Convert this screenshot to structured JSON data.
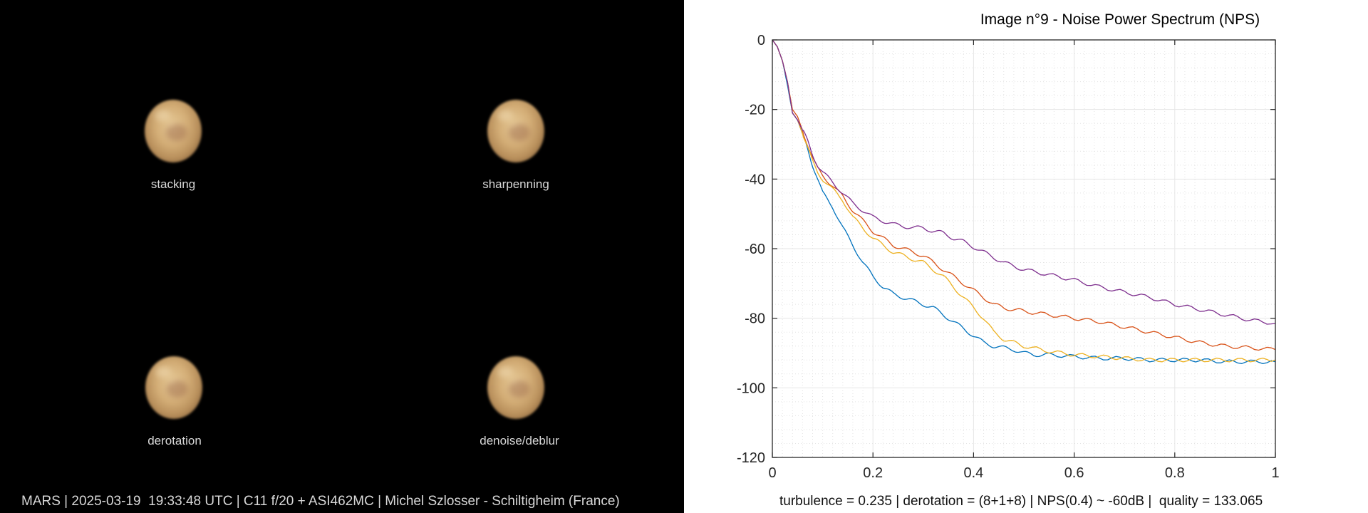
{
  "panels": [
    {
      "label": "stacking"
    },
    {
      "label": "sharpenning"
    },
    {
      "label": "derotation"
    },
    {
      "label": "denoise/deblur"
    }
  ],
  "caption": "MARS | 2025-03-19  19:33:48 UTC | C11 f/20 + ASI462MC | Michel Szlosser - Schiltigheim (France)",
  "footer": "turbulence = 0.235 | derotation = (8+1+8) | NPS(0.4) ~ -60dB |  quality = 133.065",
  "colors": {
    "background_left": "#000000",
    "grid": "#e6e6e6"
  },
  "chart_data": {
    "type": "line",
    "title": "Image n°9 - Noise Power Spectrum (NPS)",
    "xlabel": "",
    "ylabel": "",
    "xlim": [
      0,
      1
    ],
    "ylim": [
      -120,
      0
    ],
    "xticks": [
      0,
      0.2,
      0.4,
      0.6,
      0.8,
      1
    ],
    "xtick_labels": [
      "0",
      "0.2",
      "0.4",
      "0.6",
      "0.8",
      "1"
    ],
    "yticks": [
      0,
      -20,
      -40,
      -60,
      -80,
      -100,
      -120
    ],
    "ytick_labels": [
      "0",
      "-20",
      "-40",
      "-60",
      "-80",
      "-100",
      "-120"
    ],
    "grid": true,
    "minor_grid": true,
    "legend": "none",
    "series": [
      {
        "color": "#0072BD",
        "points": [
          [
            0,
            0
          ],
          [
            0.01,
            -2
          ],
          [
            0.02,
            -6
          ],
          [
            0.03,
            -13
          ],
          [
            0.04,
            -21
          ],
          [
            0.05,
            -23
          ],
          [
            0.06,
            -27
          ],
          [
            0.07,
            -31
          ],
          [
            0.08,
            -36
          ],
          [
            0.09,
            -40
          ],
          [
            0.1,
            -44
          ],
          [
            0.12,
            -48
          ],
          [
            0.14,
            -54
          ],
          [
            0.16,
            -59
          ],
          [
            0.18,
            -64
          ],
          [
            0.2,
            -68
          ],
          [
            0.22,
            -71
          ],
          [
            0.24,
            -73
          ],
          [
            0.26,
            -74
          ],
          [
            0.28,
            -75
          ],
          [
            0.3,
            -76
          ],
          [
            0.32,
            -77
          ],
          [
            0.34,
            -79
          ],
          [
            0.36,
            -81
          ],
          [
            0.38,
            -83
          ],
          [
            0.4,
            -85
          ],
          [
            0.42,
            -87
          ],
          [
            0.44,
            -88
          ],
          [
            0.46,
            -88.5
          ],
          [
            0.48,
            -89
          ],
          [
            0.5,
            -90
          ],
          [
            0.52,
            -90.5
          ],
          [
            0.55,
            -90.5
          ],
          [
            0.6,
            -91
          ],
          [
            0.65,
            -91.5
          ],
          [
            0.7,
            -91.5
          ],
          [
            0.75,
            -92
          ],
          [
            0.8,
            -92
          ],
          [
            0.85,
            -92
          ],
          [
            0.9,
            -92.5
          ],
          [
            0.95,
            -92.5
          ],
          [
            1.0,
            -92.5
          ]
        ]
      },
      {
        "color": "#D95319",
        "points": [
          [
            0,
            0
          ],
          [
            0.01,
            -2
          ],
          [
            0.02,
            -6
          ],
          [
            0.03,
            -12
          ],
          [
            0.04,
            -20
          ],
          [
            0.05,
            -22
          ],
          [
            0.06,
            -26
          ],
          [
            0.07,
            -30
          ],
          [
            0.08,
            -34
          ],
          [
            0.09,
            -37
          ],
          [
            0.1,
            -39
          ],
          [
            0.12,
            -42
          ],
          [
            0.14,
            -45
          ],
          [
            0.16,
            -49
          ],
          [
            0.18,
            -52
          ],
          [
            0.2,
            -55
          ],
          [
            0.22,
            -57
          ],
          [
            0.24,
            -59
          ],
          [
            0.26,
            -60
          ],
          [
            0.28,
            -61
          ],
          [
            0.3,
            -62
          ],
          [
            0.32,
            -64
          ],
          [
            0.34,
            -66
          ],
          [
            0.36,
            -68
          ],
          [
            0.38,
            -70
          ],
          [
            0.4,
            -72
          ],
          [
            0.42,
            -74
          ],
          [
            0.44,
            -76
          ],
          [
            0.46,
            -77
          ],
          [
            0.48,
            -77.5
          ],
          [
            0.5,
            -78
          ],
          [
            0.55,
            -79
          ],
          [
            0.6,
            -80
          ],
          [
            0.65,
            -81
          ],
          [
            0.7,
            -82.5
          ],
          [
            0.75,
            -84
          ],
          [
            0.8,
            -85.5
          ],
          [
            0.85,
            -87
          ],
          [
            0.9,
            -88
          ],
          [
            0.95,
            -88.5
          ],
          [
            1.0,
            -89
          ]
        ]
      },
      {
        "color": "#EDB120",
        "points": [
          [
            0,
            0
          ],
          [
            0.01,
            -2
          ],
          [
            0.02,
            -6
          ],
          [
            0.03,
            -12
          ],
          [
            0.04,
            -21
          ],
          [
            0.05,
            -23
          ],
          [
            0.06,
            -27
          ],
          [
            0.07,
            -31
          ],
          [
            0.08,
            -35
          ],
          [
            0.09,
            -38
          ],
          [
            0.1,
            -40
          ],
          [
            0.12,
            -43
          ],
          [
            0.14,
            -46
          ],
          [
            0.16,
            -51
          ],
          [
            0.18,
            -54
          ],
          [
            0.2,
            -57
          ],
          [
            0.22,
            -59
          ],
          [
            0.24,
            -61
          ],
          [
            0.26,
            -62
          ],
          [
            0.28,
            -63
          ],
          [
            0.3,
            -64
          ],
          [
            0.32,
            -66
          ],
          [
            0.34,
            -68
          ],
          [
            0.36,
            -71
          ],
          [
            0.38,
            -74
          ],
          [
            0.4,
            -77
          ],
          [
            0.42,
            -80
          ],
          [
            0.44,
            -84
          ],
          [
            0.46,
            -86
          ],
          [
            0.48,
            -87
          ],
          [
            0.5,
            -88
          ],
          [
            0.55,
            -89.5
          ],
          [
            0.6,
            -90.5
          ],
          [
            0.65,
            -91
          ],
          [
            0.7,
            -91.5
          ],
          [
            0.75,
            -92
          ],
          [
            0.8,
            -92
          ],
          [
            0.85,
            -92
          ],
          [
            0.9,
            -92
          ],
          [
            0.95,
            -92
          ],
          [
            1.0,
            -92
          ]
        ]
      },
      {
        "color": "#7E2F8E",
        "points": [
          [
            0,
            0
          ],
          [
            0.01,
            -2
          ],
          [
            0.02,
            -6
          ],
          [
            0.03,
            -12
          ],
          [
            0.04,
            -21
          ],
          [
            0.05,
            -23
          ],
          [
            0.06,
            -26
          ],
          [
            0.07,
            -29
          ],
          [
            0.08,
            -33
          ],
          [
            0.09,
            -36
          ],
          [
            0.1,
            -38
          ],
          [
            0.12,
            -41
          ],
          [
            0.14,
            -44
          ],
          [
            0.16,
            -47
          ],
          [
            0.18,
            -49
          ],
          [
            0.2,
            -51
          ],
          [
            0.22,
            -52
          ],
          [
            0.24,
            -53
          ],
          [
            0.26,
            -53.5
          ],
          [
            0.28,
            -54
          ],
          [
            0.3,
            -54
          ],
          [
            0.32,
            -55
          ],
          [
            0.34,
            -55.5
          ],
          [
            0.36,
            -57
          ],
          [
            0.38,
            -58
          ],
          [
            0.4,
            -59.5
          ],
          [
            0.42,
            -61
          ],
          [
            0.44,
            -62.5
          ],
          [
            0.46,
            -64
          ],
          [
            0.48,
            -65
          ],
          [
            0.5,
            -66
          ],
          [
            0.55,
            -67.5
          ],
          [
            0.6,
            -69
          ],
          [
            0.65,
            -71
          ],
          [
            0.7,
            -72.5
          ],
          [
            0.75,
            -74
          ],
          [
            0.8,
            -76
          ],
          [
            0.85,
            -77.5
          ],
          [
            0.9,
            -79
          ],
          [
            0.95,
            -80.5
          ],
          [
            1.0,
            -81.5
          ]
        ]
      }
    ]
  }
}
